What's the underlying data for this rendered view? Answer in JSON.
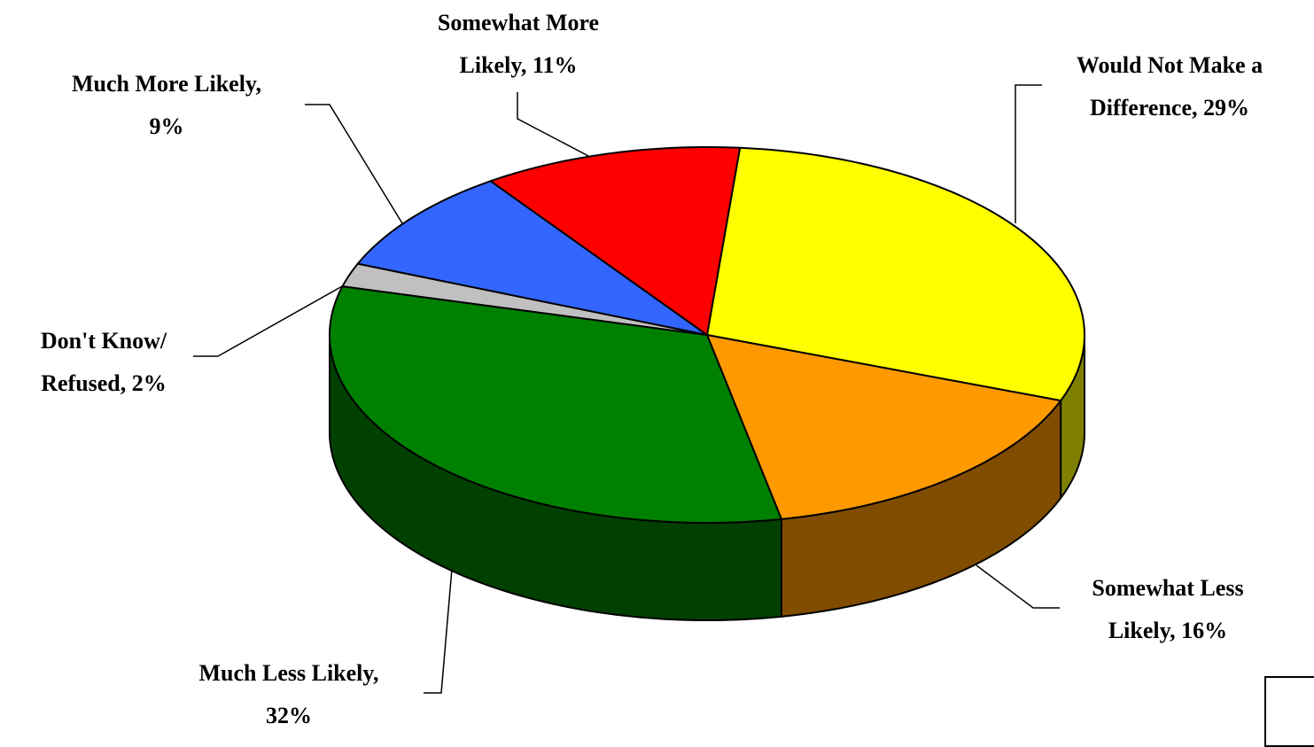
{
  "chart_data": {
    "type": "pie",
    "title": "",
    "slices": [
      {
        "label": "Would Not Make a Difference",
        "value": 29,
        "display": "29%",
        "top_color": "#ffff00",
        "side_color": "#808000"
      },
      {
        "label": "Somewhat Less Likely",
        "value": 16,
        "display": "16%",
        "top_color": "#ff9900",
        "side_color": "#804c00"
      },
      {
        "label": "Much Less Likely",
        "value": 32,
        "display": "32%",
        "top_color": "#008000",
        "side_color": "#004000"
      },
      {
        "label": "Don't Know/ Refused",
        "value": 2,
        "display": "2%",
        "top_color": "#c0c0c0",
        "side_color": "#606060"
      },
      {
        "label": "Much More Likely",
        "value": 9,
        "display": "9%",
        "top_color": "#3366ff",
        "side_color": "#1a3380"
      },
      {
        "label": "Somewhat More Likely",
        "value": 11,
        "display": "11%",
        "top_color": "#ff0000",
        "side_color": "#800000"
      }
    ],
    "data_labels": [
      {
        "lines": [
          "Would Not Make a",
          "Difference, 29%"
        ]
      },
      {
        "lines": [
          "Somewhat Less",
          "Likely, 16%"
        ]
      },
      {
        "lines": [
          "Much Less Likely,",
          "32%"
        ]
      },
      {
        "lines": [
          "Don't Know/",
          "Refused, 2%"
        ]
      },
      {
        "lines": [
          "Much More Likely,",
          "9%"
        ]
      },
      {
        "lines": [
          "Somewhat More",
          "Likely, 11%"
        ]
      }
    ],
    "legend": "none",
    "style": "3d-exploded-none"
  }
}
